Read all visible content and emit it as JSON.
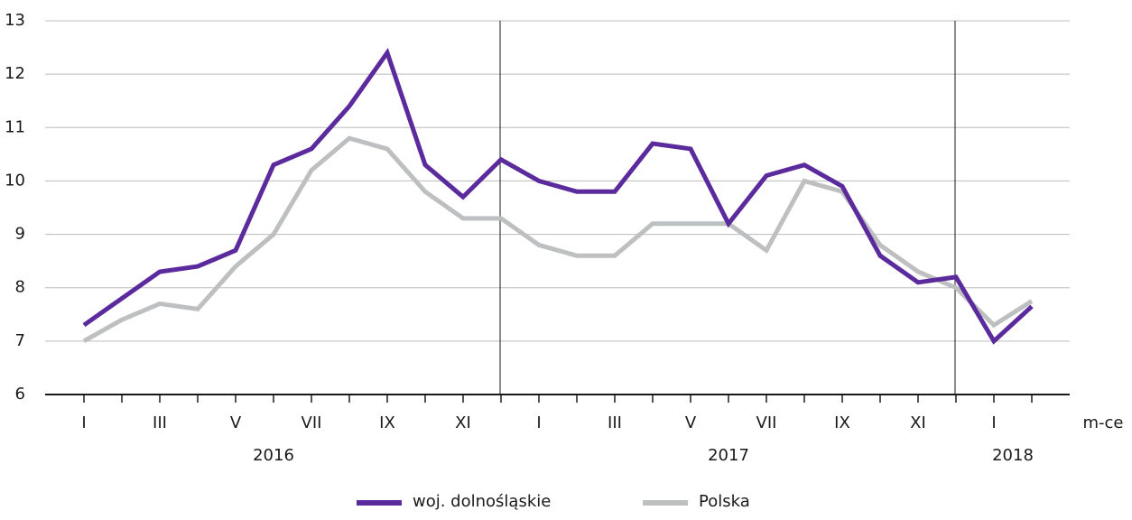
{
  "chart_data": {
    "type": "line",
    "categories": [
      "I",
      null,
      "III",
      null,
      "V",
      null,
      "VII",
      null,
      "IX",
      null,
      "XI",
      null,
      "I",
      null,
      "III",
      null,
      "V",
      null,
      "VII",
      null,
      "IX",
      null,
      "XI",
      null,
      "I",
      null
    ],
    "x_groups": [
      "2016",
      "2017",
      "2018"
    ],
    "xlabel": "m-ce",
    "series": [
      {
        "name": "woj. dolnośląskie",
        "color": "#5b2a9c",
        "values": [
          7.3,
          7.8,
          8.3,
          8.4,
          8.7,
          10.3,
          10.6,
          11.4,
          12.4,
          10.3,
          9.7,
          10.4,
          10.0,
          9.8,
          9.8,
          10.7,
          10.6,
          9.2,
          10.1,
          10.3,
          9.9,
          8.6,
          8.1,
          8.2,
          7.0,
          7.65
        ]
      },
      {
        "name": "Polska",
        "color": "#bdbfc0",
        "values": [
          7.0,
          7.4,
          7.7,
          7.6,
          8.4,
          9.0,
          10.2,
          10.8,
          10.6,
          9.8,
          9.3,
          9.3,
          8.8,
          8.6,
          8.6,
          9.2,
          9.2,
          9.2,
          8.7,
          10.0,
          9.8,
          8.8,
          8.3,
          8.0,
          7.3,
          7.75
        ]
      }
    ],
    "ylim": [
      6,
      13
    ],
    "yticks": [
      6,
      7,
      8,
      9,
      10,
      11,
      12,
      13
    ],
    "grid": true
  }
}
